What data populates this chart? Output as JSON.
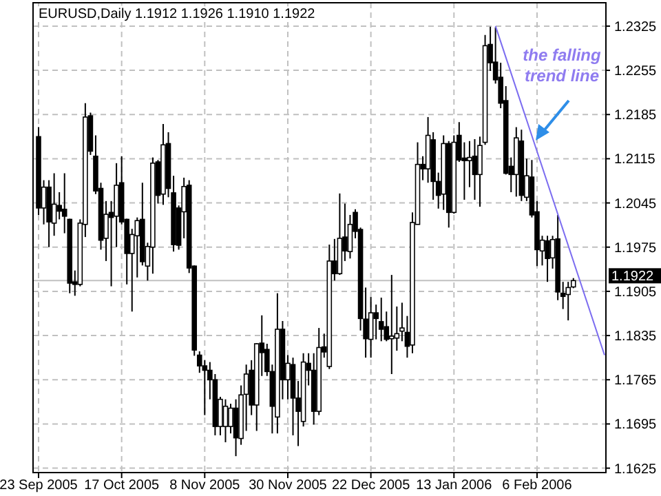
{
  "chart_data": {
    "type": "candlestick",
    "title": "EURUSD,Daily  1.1912 1.1926 1.1910 1.1922",
    "categories": [
      "23 Sep 2005",
      null,
      null,
      null,
      null,
      null,
      null,
      null,
      null,
      null,
      null,
      null,
      null,
      null,
      null,
      null,
      "17 Oct 2005",
      null,
      null,
      null,
      null,
      null,
      null,
      null,
      null,
      null,
      null,
      null,
      null,
      null,
      null,
      null,
      "8 Nov 2005",
      null,
      null,
      null,
      null,
      null,
      null,
      null,
      null,
      null,
      null,
      null,
      null,
      null,
      null,
      null,
      "30 Nov 2005",
      null,
      null,
      null,
      null,
      null,
      null,
      null,
      null,
      null,
      null,
      null,
      null,
      null,
      null,
      null,
      "22 Dec 2005",
      null,
      null,
      null,
      null,
      null,
      null,
      null,
      null,
      null,
      null,
      null,
      null,
      null,
      null,
      null,
      "13 Jan 2006",
      null,
      null,
      null,
      null,
      null,
      null,
      null,
      null,
      null,
      null,
      null,
      null,
      null,
      null,
      null,
      "6 Feb 2006",
      null,
      null,
      null,
      null,
      null,
      null,
      null,
      null,
      null,
      null,
      null,
      null,
      null
    ],
    "ohlc": [
      [
        1.215,
        1.2165,
        1.2026,
        1.2037
      ],
      [
        1.2037,
        1.2081,
        1.2011,
        1.207
      ],
      [
        1.207,
        1.2081,
        1.1975,
        1.2015
      ],
      [
        1.2013,
        1.2092,
        1.1993,
        1.2043
      ],
      [
        1.2041,
        1.2062,
        1.2019,
        1.2032
      ],
      [
        1.2035,
        1.2092,
        1.1997,
        1.2024
      ],
      [
        1.2019,
        1.202,
        1.1902,
        1.1918
      ],
      [
        1.192,
        1.1938,
        1.1898,
        1.1916
      ],
      [
        1.1916,
        1.2019,
        1.1913,
        1.2013
      ],
      [
        1.2011,
        1.2203,
        1.1991,
        1.2181
      ],
      [
        1.2183,
        1.2188,
        1.2121,
        1.2127
      ],
      [
        1.2119,
        1.2152,
        1.2059,
        1.2064
      ],
      [
        1.2068,
        1.2077,
        1.1971,
        1.1986
      ],
      [
        1.1989,
        1.2048,
        1.1953,
        1.2027
      ],
      [
        1.203,
        1.2048,
        1.1913,
        1.2022
      ],
      [
        1.2024,
        1.2108,
        1.1975,
        1.2073
      ],
      [
        1.2077,
        1.2119,
        1.2011,
        1.2015
      ],
      [
        1.2019,
        1.202,
        1.1916,
        1.1965
      ],
      [
        1.1965,
        1.2004,
        1.1873,
        1.1995
      ],
      [
        1.1993,
        1.2022,
        1.1927,
        1.2017
      ],
      [
        1.2019,
        1.2077,
        1.1946,
        1.1952
      ],
      [
        1.1945,
        1.1982,
        1.1922,
        1.1976
      ],
      [
        1.1975,
        1.2117,
        1.1933,
        1.2108
      ],
      [
        1.211,
        1.2113,
        1.2044,
        1.2057
      ],
      [
        1.2059,
        1.217,
        1.2042,
        1.2137
      ],
      [
        1.2139,
        1.2157,
        1.2054,
        1.2068
      ],
      [
        1.2061,
        1.2088,
        1.1968,
        1.1979
      ],
      [
        1.2037,
        1.2041,
        1.1971,
        1.1978
      ],
      [
        1.2031,
        1.2085,
        1.1989,
        1.2071
      ],
      [
        1.2073,
        1.2081,
        1.1934,
        1.1942
      ],
      [
        1.1945,
        1.1946,
        1.1803,
        1.1812
      ],
      [
        1.1804,
        1.181,
        1.1776,
        1.1787
      ],
      [
        1.1787,
        1.1796,
        1.1709,
        1.178
      ],
      [
        1.178,
        1.1793,
        1.1734,
        1.1765
      ],
      [
        1.1765,
        1.1774,
        1.1677,
        1.1691
      ],
      [
        1.1691,
        1.1738,
        1.1677,
        1.1734
      ],
      [
        1.1691,
        1.1734,
        1.1666,
        1.1723
      ],
      [
        1.1691,
        1.1727,
        1.168,
        1.172
      ],
      [
        1.172,
        1.1734,
        1.1644,
        1.1673
      ],
      [
        1.1672,
        1.1756,
        1.1662,
        1.1741
      ],
      [
        1.1742,
        1.1789,
        1.1684,
        1.1774
      ],
      [
        1.178,
        1.1796,
        1.1709,
        1.1725
      ],
      [
        1.1725,
        1.1823,
        1.1684,
        1.1822
      ],
      [
        1.1823,
        1.1867,
        1.1771,
        1.1808
      ],
      [
        1.1813,
        1.1822,
        1.1771,
        1.1778
      ],
      [
        1.1778,
        1.1789,
        1.168,
        1.1723
      ],
      [
        1.1706,
        1.1902,
        1.168,
        1.1845
      ],
      [
        1.1845,
        1.1858,
        1.1734,
        1.1765
      ],
      [
        1.1765,
        1.1804,
        1.1734,
        1.1791
      ],
      [
        1.1789,
        1.18,
        1.1677,
        1.1736
      ],
      [
        1.1736,
        1.1763,
        1.166,
        1.1715
      ],
      [
        1.1699,
        1.1807,
        1.1691,
        1.1793
      ],
      [
        1.1791,
        1.1807,
        1.1756,
        1.178
      ],
      [
        1.178,
        1.1807,
        1.1694,
        1.1715
      ],
      [
        1.1715,
        1.1847,
        1.1709,
        1.1816
      ],
      [
        1.1817,
        1.1838,
        1.18,
        1.1809
      ],
      [
        1.1786,
        1.1979,
        1.1782,
        1.1953
      ],
      [
        1.1953,
        1.1988,
        1.1922,
        1.1933
      ],
      [
        1.1933,
        1.206,
        1.1931,
        1.1989
      ],
      [
        1.1991,
        1.2044,
        1.1953,
        1.1969
      ],
      [
        1.1968,
        1.2026,
        1.1957,
        1.2011
      ],
      [
        1.203,
        1.2035,
        1.1989,
        1.2
      ],
      [
        1.2003,
        1.2006,
        1.1843,
        1.1862
      ],
      [
        1.1861,
        1.1911,
        1.18,
        1.183
      ],
      [
        1.1829,
        1.1896,
        1.18,
        1.1871
      ],
      [
        1.1871,
        1.1884,
        1.1829,
        1.1862
      ],
      [
        1.1857,
        1.1895,
        1.1826,
        1.1845
      ],
      [
        1.1849,
        1.1873,
        1.1826,
        1.1829
      ],
      [
        1.183,
        1.1931,
        1.1774,
        1.1834
      ],
      [
        1.1831,
        1.1881,
        1.1811,
        1.1838
      ],
      [
        1.1842,
        1.1887,
        1.1826,
        1.1847
      ],
      [
        1.184,
        1.1866,
        1.18,
        1.1818
      ],
      [
        1.182,
        1.203,
        1.1807,
        1.2014
      ],
      [
        1.2011,
        1.2141,
        1.2011,
        1.2106
      ],
      [
        1.2106,
        1.2119,
        1.2081,
        1.2099
      ],
      [
        1.2099,
        1.2181,
        1.2077,
        1.2152
      ],
      [
        1.2145,
        1.2157,
        1.205,
        1.2079
      ],
      [
        1.2079,
        1.2093,
        1.2036,
        1.2057
      ],
      [
        1.2059,
        1.2152,
        1.2034,
        1.2139
      ],
      [
        1.2139,
        1.2143,
        1.2006,
        1.203
      ],
      [
        1.203,
        1.2152,
        1.2028,
        1.2141
      ],
      [
        1.2152,
        1.2173,
        1.211,
        1.2113
      ],
      [
        1.2116,
        1.2141,
        1.205,
        1.2112
      ],
      [
        1.2112,
        1.2143,
        1.207,
        1.2117
      ],
      [
        1.2119,
        1.2146,
        1.205,
        1.209
      ],
      [
        1.209,
        1.215,
        1.2039,
        1.2136
      ],
      [
        1.2141,
        1.2311,
        1.2137,
        1.2294
      ],
      [
        1.2296,
        1.2324,
        1.2254,
        1.2267
      ],
      [
        1.2268,
        1.2323,
        1.2234,
        1.224
      ],
      [
        1.2244,
        1.2267,
        1.2195,
        1.2203
      ],
      [
        1.2207,
        1.223,
        1.209,
        1.2092
      ],
      [
        1.2103,
        1.2117,
        1.2062,
        1.209
      ],
      [
        1.209,
        1.2165,
        1.2055,
        1.2148
      ],
      [
        1.2143,
        1.2161,
        1.2048,
        1.2057
      ],
      [
        1.2054,
        1.2115,
        1.2048,
        1.2088
      ],
      [
        1.2086,
        1.2113,
        1.2022,
        1.2026
      ],
      [
        1.2031,
        1.2048,
        1.1945,
        1.1971
      ],
      [
        1.1969,
        1.1993,
        1.1946,
        1.1986
      ],
      [
        1.1985,
        1.1993,
        1.192,
        1.1957
      ],
      [
        1.1958,
        1.1993,
        1.1941,
        1.1987
      ],
      [
        1.1988,
        1.2026,
        1.1891,
        1.1904
      ],
      [
        1.1902,
        1.192,
        1.1877,
        1.1897
      ],
      [
        1.19,
        1.192,
        1.1859,
        1.1911
      ],
      [
        1.1912,
        1.1926,
        1.191,
        1.1922
      ],
      null,
      null,
      null,
      null,
      null,
      null
    ],
    "series": [
      {
        "type": "line",
        "color": "#7b6cf0",
        "values": [
          null,
          null,
          null,
          null,
          null,
          null,
          null,
          null,
          null,
          null,
          null,
          null,
          null,
          null,
          null,
          null,
          null,
          null,
          null,
          null,
          null,
          null,
          null,
          null,
          null,
          null,
          null,
          null,
          null,
          null,
          null,
          null,
          null,
          null,
          null,
          null,
          null,
          null,
          null,
          null,
          null,
          null,
          null,
          null,
          null,
          null,
          null,
          null,
          null,
          null,
          null,
          null,
          null,
          null,
          null,
          null,
          null,
          null,
          null,
          null,
          null,
          null,
          null,
          null,
          null,
          null,
          null,
          null,
          null,
          null,
          null,
          null,
          null,
          null,
          null,
          null,
          null,
          null,
          null,
          null,
          null,
          null,
          null,
          null,
          null,
          null,
          null,
          null,
          1.2325,
          null,
          null,
          null,
          null,
          null,
          null,
          null,
          null,
          null,
          null,
          null,
          null,
          null,
          null,
          null,
          null,
          null,
          null,
          null,
          null,
          1.1804
        ]
      }
    ],
    "ylim": [
      1.1618,
      1.2362
    ],
    "yticks": [
      1.1625,
      1.1695,
      1.1765,
      1.1835,
      1.1905,
      1.1975,
      1.2045,
      1.2115,
      1.2185,
      1.2255,
      1.2325
    ],
    "grid": true,
    "ref_lines": [
      {
        "axis": "y",
        "value": 1.1922,
        "label": "1.1922",
        "color": "#c0c0c0"
      }
    ],
    "annotations": [
      "the falling trend line"
    ]
  }
}
